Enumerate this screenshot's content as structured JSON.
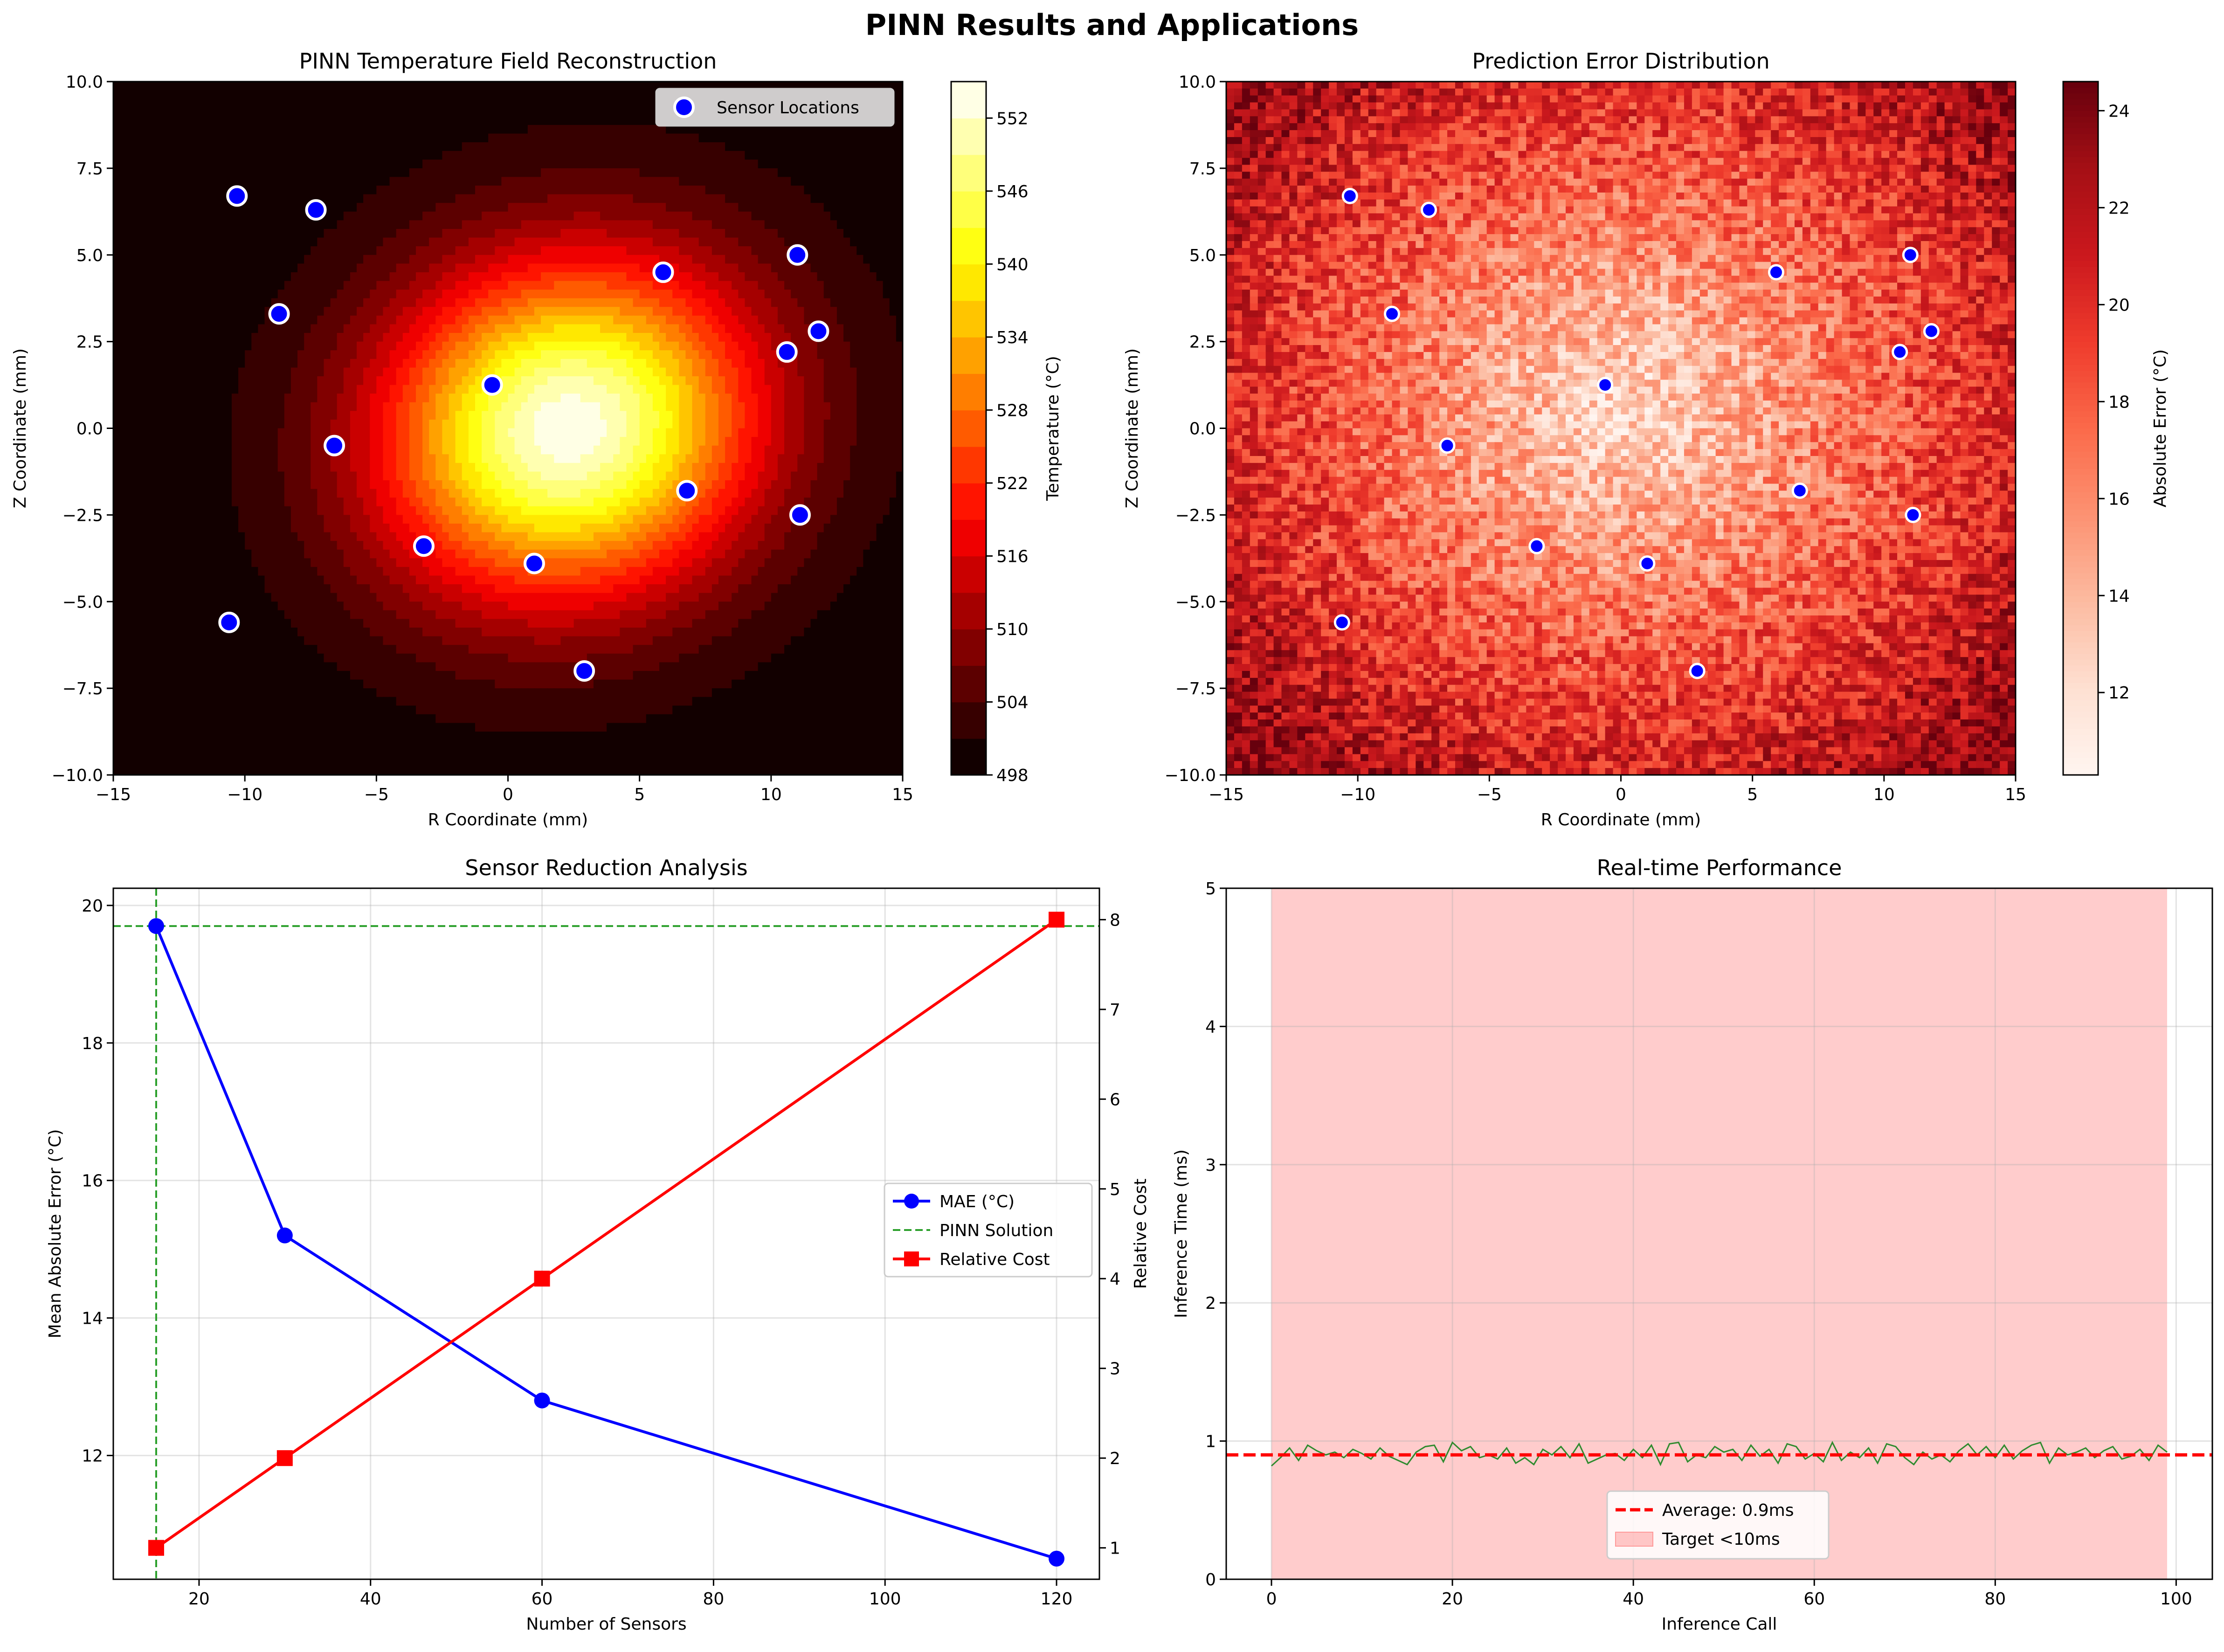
{
  "figure": {
    "title": "PINN Results and Applications"
  },
  "chart_data": [
    {
      "id": "temperature_field",
      "type": "heatmap",
      "title": "PINN Temperature Field Reconstruction",
      "xlabel": "R Coordinate (mm)",
      "ylabel": "Z Coordinate (mm)",
      "xlim": [
        -15,
        15
      ],
      "ylim": [
        -10,
        10
      ],
      "xticks": [
        -15,
        -10,
        -5,
        0,
        5,
        10,
        15
      ],
      "yticks": [
        -10.0,
        -7.5,
        -5.0,
        -2.5,
        0.0,
        2.5,
        5.0,
        7.5,
        10.0
      ],
      "peak": {
        "r": 2.3,
        "z": 0.0,
        "value": 554
      },
      "colorbar": {
        "label": "Temperature (°C)",
        "min": 498,
        "max": 555,
        "ticks": [
          498,
          504,
          510,
          516,
          522,
          528,
          534,
          540,
          546,
          552
        ],
        "colormap": "hot"
      },
      "legend": {
        "label": "Sensor Locations",
        "position": "top-right"
      },
      "sensors": [
        {
          "r": -10.3,
          "z": 6.7
        },
        {
          "r": -7.3,
          "z": 6.3
        },
        {
          "r": -8.7,
          "z": 3.3
        },
        {
          "r": -6.6,
          "z": -0.5
        },
        {
          "r": -0.6,
          "z": 1.25
        },
        {
          "r": 5.9,
          "z": 4.5
        },
        {
          "r": 11.0,
          "z": 5.0
        },
        {
          "r": 10.6,
          "z": 2.2
        },
        {
          "r": 11.8,
          "z": 2.8
        },
        {
          "r": 6.8,
          "z": -1.8
        },
        {
          "r": 11.1,
          "z": -2.5
        },
        {
          "r": -3.2,
          "z": -3.4
        },
        {
          "r": 1.0,
          "z": -3.9
        },
        {
          "r": -10.6,
          "z": -5.6
        },
        {
          "r": 2.9,
          "z": -7.0
        }
      ]
    },
    {
      "id": "error_distribution",
      "type": "heatmap",
      "title": "Prediction Error Distribution",
      "xlabel": "R Coordinate (mm)",
      "ylabel": "Z Coordinate (mm)",
      "xlim": [
        -15,
        15
      ],
      "ylim": [
        -10,
        10
      ],
      "xticks": [
        -15,
        -10,
        -5,
        0,
        5,
        10,
        15
      ],
      "yticks": [
        -10.0,
        -7.5,
        -5.0,
        -2.5,
        0.0,
        2.5,
        5.0,
        7.5,
        10.0
      ],
      "colorbar": {
        "label": "Absolute Error (°C)",
        "min": 10.3,
        "max": 24.6,
        "ticks": [
          12,
          14,
          16,
          18,
          20,
          22,
          24
        ],
        "colormap": "Reds"
      },
      "sensors": [
        {
          "r": -10.3,
          "z": 6.7
        },
        {
          "r": -7.3,
          "z": 6.3
        },
        {
          "r": -8.7,
          "z": 3.3
        },
        {
          "r": -6.6,
          "z": -0.5
        },
        {
          "r": -0.6,
          "z": 1.25
        },
        {
          "r": 5.9,
          "z": 4.5
        },
        {
          "r": 11.0,
          "z": 5.0
        },
        {
          "r": 10.6,
          "z": 2.2
        },
        {
          "r": 11.8,
          "z": 2.8
        },
        {
          "r": 6.8,
          "z": -1.8
        },
        {
          "r": 11.1,
          "z": -2.5
        },
        {
          "r": -3.2,
          "z": -3.4
        },
        {
          "r": 1.0,
          "z": -3.9
        },
        {
          "r": -10.6,
          "z": -5.6
        },
        {
          "r": 2.9,
          "z": -7.0
        }
      ]
    },
    {
      "id": "sensor_reduction",
      "type": "line",
      "title": "Sensor Reduction Analysis",
      "xlabel": "Number of Sensors",
      "ylabel": "Mean Absolute Error (°C)",
      "ylabel_right": "Relative Cost",
      "xlim": [
        10,
        125
      ],
      "ylim": [
        10.2,
        20.25
      ],
      "ylim_right": [
        0.65,
        8.35
      ],
      "xticks": [
        20,
        40,
        60,
        80,
        100,
        120
      ],
      "yticks": [
        12,
        14,
        16,
        18,
        20
      ],
      "yticks_right": [
        1,
        2,
        3,
        4,
        5,
        6,
        7,
        8
      ],
      "x": [
        15,
        30,
        60,
        120
      ],
      "series": [
        {
          "name": "MAE (°C)",
          "axis": "left",
          "color": "#0000ff",
          "marker": "circle",
          "values": [
            19.7,
            15.2,
            12.8,
            10.5
          ]
        },
        {
          "name": "Relative Cost",
          "axis": "right",
          "color": "#ff0000",
          "marker": "square",
          "values": [
            1,
            2,
            4,
            8
          ]
        }
      ],
      "reference_lines": {
        "name": "PINN Solution",
        "color": "#2ca02c",
        "x": 15,
        "y": 19.7
      },
      "legend": {
        "position": "center-right",
        "entries": [
          "MAE (°C)",
          "PINN Solution",
          "Relative Cost"
        ]
      },
      "grid": true
    },
    {
      "id": "realtime_performance",
      "type": "line",
      "title": "Real-time Performance",
      "xlabel": "Inference Call",
      "ylabel": "Inference Time (ms)",
      "xlim": [
        -5,
        104
      ],
      "ylim": [
        0,
        5
      ],
      "xticks": [
        0,
        20,
        40,
        60,
        80,
        100
      ],
      "yticks": [
        0,
        1,
        2,
        3,
        4,
        5
      ],
      "series": [
        {
          "name": "inference_time",
          "color": "#2e8b2e",
          "values": [
            0.82,
            0.88,
            0.95,
            0.86,
            0.97,
            0.93,
            0.9,
            0.92,
            0.88,
            0.94,
            0.91,
            0.87,
            0.95,
            0.89,
            0.86,
            0.83,
            0.92,
            0.96,
            0.97,
            0.85,
            0.99,
            0.93,
            0.96,
            0.88,
            0.9,
            0.87,
            0.95,
            0.84,
            0.88,
            0.83,
            0.94,
            0.9,
            0.96,
            0.88,
            0.98,
            0.84,
            0.87,
            0.9,
            0.91,
            0.86,
            0.94,
            0.88,
            0.97,
            0.83,
            0.98,
            0.99,
            0.85,
            0.9,
            0.88,
            0.96,
            0.92,
            0.94,
            0.86,
            0.97,
            0.89,
            0.94,
            0.84,
            0.98,
            0.96,
            0.87,
            0.91,
            0.85,
            0.99,
            0.86,
            0.92,
            0.88,
            0.95,
            0.84,
            0.98,
            0.96,
            0.88,
            0.83,
            0.92,
            0.87,
            0.9,
            0.85,
            0.93,
            0.98,
            0.9,
            0.96,
            0.88,
            0.97,
            0.87,
            0.93,
            0.97,
            0.99,
            0.84,
            0.95,
            0.9,
            0.92,
            0.95,
            0.88,
            0.93,
            0.96,
            0.87,
            0.89,
            0.94,
            0.86,
            0.97,
            0.92
          ]
        },
        {
          "name": "Average: 0.9ms",
          "color": "#ff0000",
          "style": "dashed",
          "y": 0.9
        },
        {
          "name": "Target <10ms",
          "color": "#ffcccc",
          "type": "band",
          "x": [
            0,
            99
          ],
          "y": [
            0,
            10
          ]
        }
      ],
      "legend": {
        "position": "lower-center",
        "entries": [
          "Average: 0.9ms",
          "Target <10ms"
        ]
      },
      "grid": true
    }
  ]
}
